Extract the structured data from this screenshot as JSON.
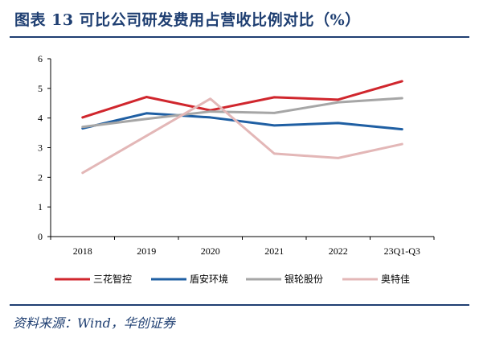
{
  "title": "图表 13  可比公司研发费用占营收比例对比（%）",
  "source": "资料来源：Wind，华创证券",
  "chart_data": {
    "type": "line",
    "title": "图表 13  可比公司研发费用占营收比例对比（%）",
    "xlabel": "",
    "ylabel": "",
    "categories": [
      "2018",
      "2019",
      "2020",
      "2021",
      "2022",
      "23Q1-Q3"
    ],
    "ylim": [
      0,
      6
    ],
    "yticks": [
      "0",
      "1",
      "2",
      "3",
      "4",
      "5",
      "6"
    ],
    "grid": false,
    "legend_position": "bottom",
    "series": [
      {
        "name": "三花智控",
        "color": "#d0262d",
        "values": [
          4.02,
          4.71,
          4.26,
          4.7,
          4.62,
          5.24
        ]
      },
      {
        "name": "盾安环境",
        "color": "#1f5fa3",
        "values": [
          3.65,
          4.16,
          4.02,
          3.75,
          3.83,
          3.62
        ]
      },
      {
        "name": "银轮股份",
        "color": "#a6a6a6",
        "values": [
          3.7,
          3.97,
          4.22,
          4.17,
          4.53,
          4.67
        ]
      },
      {
        "name": "奥特佳",
        "color": "#e3b7b7",
        "values": [
          2.15,
          3.4,
          4.65,
          2.8,
          2.65,
          3.12
        ]
      }
    ]
  }
}
